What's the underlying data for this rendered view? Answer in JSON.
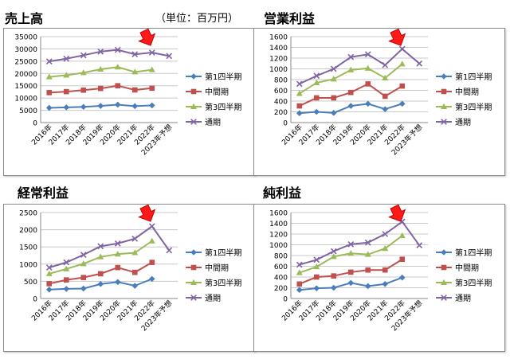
{
  "unit_note": "（単位：百万円）",
  "chart_data": [
    {
      "type": "line",
      "title": "売上高",
      "categories": [
        "2016年",
        "2017年",
        "2018年",
        "2019年",
        "2020年",
        "2021年",
        "2022年",
        "2023年予想"
      ],
      "ylim": [
        0,
        35000
      ],
      "ystep": 5000,
      "grid": true,
      "legend": "right",
      "series": [
        {
          "name": "第1四半期",
          "color": "#4a7ebb",
          "values": [
            6000,
            6200,
            6400,
            6800,
            7300,
            6700,
            7000,
            null
          ]
        },
        {
          "name": "中間期",
          "color": "#c0504d",
          "values": [
            12200,
            12600,
            13200,
            13900,
            15000,
            13300,
            14000,
            null
          ]
        },
        {
          "name": "第3四半期",
          "color": "#9bbb59",
          "values": [
            18600,
            19300,
            20300,
            21700,
            22600,
            20600,
            21500,
            null
          ]
        },
        {
          "name": "通期",
          "color": "#8064a2",
          "values": [
            24900,
            26000,
            27400,
            28900,
            29600,
            27800,
            28500,
            27100
          ]
        }
      ]
    },
    {
      "type": "line",
      "title": "営業利益",
      "categories": [
        "2016年",
        "2017年",
        "2018年",
        "2019年",
        "2020年",
        "2021年",
        "2022年",
        "2023年予想"
      ],
      "ylim": [
        0,
        1600
      ],
      "ystep": 200,
      "grid": true,
      "legend": "right",
      "series": [
        {
          "name": "第1四半期",
          "color": "#4a7ebb",
          "values": [
            175,
            200,
            180,
            310,
            350,
            250,
            350,
            null
          ]
        },
        {
          "name": "中間期",
          "color": "#c0504d",
          "values": [
            310,
            460,
            460,
            560,
            720,
            490,
            680,
            null
          ]
        },
        {
          "name": "第3四半期",
          "color": "#9bbb59",
          "values": [
            540,
            740,
            810,
            980,
            1010,
            830,
            1090,
            null
          ]
        },
        {
          "name": "通期",
          "color": "#8064a2",
          "values": [
            720,
            870,
            1000,
            1220,
            1270,
            1070,
            1370,
            1100
          ]
        }
      ]
    },
    {
      "type": "line",
      "title": "経常利益",
      "categories": [
        "2016年",
        "2017年",
        "2018年",
        "2019年",
        "2020年",
        "2021年",
        "2022年",
        "2023年予想"
      ],
      "ylim": [
        0,
        2500
      ],
      "ystep": 500,
      "grid": true,
      "legend": "right",
      "series": [
        {
          "name": "第1四半期",
          "color": "#4a7ebb",
          "values": [
            260,
            280,
            290,
            420,
            480,
            370,
            570,
            null
          ]
        },
        {
          "name": "中間期",
          "color": "#c0504d",
          "values": [
            430,
            540,
            610,
            720,
            900,
            760,
            1050,
            null
          ]
        },
        {
          "name": "第3四半期",
          "color": "#9bbb59",
          "values": [
            720,
            860,
            1010,
            1210,
            1290,
            1330,
            1670,
            null
          ]
        },
        {
          "name": "通期",
          "color": "#8064a2",
          "values": [
            900,
            1050,
            1270,
            1520,
            1600,
            1740,
            2100,
            1400
          ]
        }
      ]
    },
    {
      "type": "line",
      "title": "純利益",
      "categories": [
        "2016年",
        "2017年",
        "2018年",
        "2019年",
        "2020年",
        "2021年",
        "2022年",
        "2023年予想"
      ],
      "ylim": [
        0,
        1600
      ],
      "ystep": 200,
      "grid": true,
      "legend": "right",
      "series": [
        {
          "name": "第1四半期",
          "color": "#4a7ebb",
          "values": [
            160,
            190,
            200,
            290,
            230,
            270,
            390,
            null
          ]
        },
        {
          "name": "中間期",
          "color": "#c0504d",
          "values": [
            270,
            400,
            420,
            490,
            530,
            530,
            730,
            null
          ]
        },
        {
          "name": "第3四半期",
          "color": "#9bbb59",
          "values": [
            480,
            590,
            780,
            840,
            820,
            930,
            1170,
            null
          ]
        },
        {
          "name": "通期",
          "color": "#8064a2",
          "values": [
            630,
            720,
            880,
            1010,
            1040,
            1200,
            1430,
            990
          ]
        }
      ]
    }
  ]
}
